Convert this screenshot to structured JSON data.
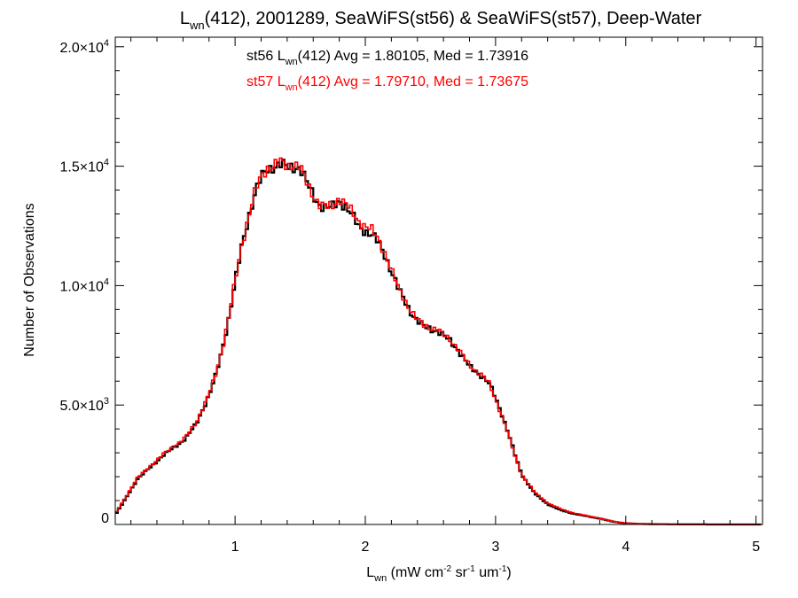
{
  "chart_data": {
    "type": "line",
    "title": {
      "main": "L",
      "sub": "wn",
      "rest": "(412), 2001289, SeaWiFS(st56) & SeaWiFS(st57), Deep-Water"
    },
    "xlabel": {
      "main": "L",
      "sub": "wn",
      "unit_pre": " (mW cm",
      "sup1": "-2",
      "unit_mid1": " sr",
      "sup2": "-1",
      "unit_mid2": " um",
      "sup3": "-1",
      "unit_post": ")"
    },
    "ylabel": "Number of Observations",
    "xlim": [
      0.08,
      5.05
    ],
    "ylim": [
      0,
      20400
    ],
    "grid": false,
    "x_ticks": [
      {
        "value": 1,
        "label": "1"
      },
      {
        "value": 2,
        "label": "2"
      },
      {
        "value": 3,
        "label": "3"
      },
      {
        "value": 4,
        "label": "4"
      },
      {
        "value": 5,
        "label": "5"
      }
    ],
    "y_ticks": [
      {
        "value": 0,
        "mant": "0",
        "exp": ""
      },
      {
        "value": 5000,
        "mant": "5.0×10",
        "exp": "3"
      },
      {
        "value": 10000,
        "mant": "1.0×10",
        "exp": "4"
      },
      {
        "value": 15000,
        "mant": "1.5×10",
        "exp": "4"
      },
      {
        "value": 20000,
        "mant": "2.0×10",
        "exp": "4"
      }
    ],
    "annotations": [
      {
        "pre": "st56 L",
        "sub": "wn",
        "post": "(412) Avg = 1.80105, Med = 1.73916",
        "color": "#000000"
      },
      {
        "pre": "st57 L",
        "sub": "wn",
        "post": "(412) Avg = 1.79710, Med = 1.73675",
        "color": "#ff0000"
      }
    ],
    "series": [
      {
        "color": "#000000",
        "x": [
          0.08,
          0.15,
          0.25,
          0.35,
          0.45,
          0.55,
          0.62,
          0.7,
          0.75,
          0.8,
          0.85,
          0.9,
          0.95,
          1.0,
          1.05,
          1.1,
          1.15,
          1.2,
          1.25,
          1.3,
          1.35,
          1.4,
          1.45,
          1.5,
          1.55,
          1.6,
          1.65,
          1.7,
          1.75,
          1.8,
          1.85,
          1.9,
          1.95,
          2.0,
          2.05,
          2.1,
          2.15,
          2.2,
          2.25,
          2.3,
          2.35,
          2.4,
          2.45,
          2.5,
          2.55,
          2.6,
          2.65,
          2.7,
          2.75,
          2.8,
          2.85,
          2.9,
          2.95,
          3.0,
          3.05,
          3.1,
          3.15,
          3.2,
          3.3,
          3.4,
          3.5,
          3.6,
          3.7,
          3.8,
          3.9,
          4.0,
          4.1,
          4.2,
          4.3,
          4.4,
          4.6,
          4.8,
          5.05
        ],
        "values": [
          400,
          1000,
          1900,
          2400,
          2900,
          3300,
          3600,
          4200,
          4800,
          5400,
          6200,
          7300,
          8600,
          10100,
          11600,
          12800,
          13800,
          14500,
          14900,
          15000,
          15050,
          14950,
          15000,
          14900,
          14300,
          13800,
          13400,
          13200,
          13300,
          13600,
          13300,
          12900,
          12500,
          12300,
          12100,
          11800,
          11300,
          10600,
          9900,
          9400,
          8900,
          8500,
          8300,
          8200,
          8100,
          7900,
          7700,
          7400,
          7000,
          6600,
          6400,
          6200,
          5900,
          5300,
          4600,
          3800,
          2900,
          2100,
          1300,
          850,
          600,
          450,
          350,
          250,
          120,
          50,
          25,
          15,
          10,
          5,
          2,
          1,
          0
        ]
      },
      {
        "color": "#ff0000",
        "x": [
          0.08,
          0.15,
          0.25,
          0.35,
          0.45,
          0.55,
          0.62,
          0.7,
          0.75,
          0.8,
          0.85,
          0.9,
          0.95,
          1.0,
          1.05,
          1.1,
          1.15,
          1.2,
          1.25,
          1.3,
          1.35,
          1.4,
          1.45,
          1.5,
          1.55,
          1.6,
          1.65,
          1.7,
          1.75,
          1.8,
          1.85,
          1.9,
          1.95,
          2.0,
          2.05,
          2.1,
          2.15,
          2.2,
          2.25,
          2.3,
          2.35,
          2.4,
          2.45,
          2.5,
          2.55,
          2.6,
          2.65,
          2.7,
          2.75,
          2.8,
          2.85,
          2.9,
          2.95,
          3.0,
          3.05,
          3.1,
          3.15,
          3.2,
          3.3,
          3.4,
          3.5,
          3.6,
          3.7,
          3.8,
          3.9,
          4.0,
          4.1,
          4.2,
          4.3,
          4.4,
          4.6,
          4.8,
          5.05
        ],
        "values": [
          450,
          1050,
          1950,
          2450,
          2950,
          3350,
          3650,
          4250,
          4850,
          5450,
          6250,
          7350,
          8650,
          10150,
          11650,
          12850,
          13850,
          14550,
          14950,
          15050,
          15150,
          15000,
          15100,
          14950,
          14300,
          13800,
          13400,
          13250,
          13350,
          13700,
          13400,
          13050,
          12700,
          12500,
          12300,
          11950,
          11400,
          10650,
          9950,
          9450,
          8950,
          8550,
          8350,
          8250,
          8150,
          7950,
          7750,
          7450,
          7050,
          6650,
          6450,
          6250,
          5900,
          5250,
          4550,
          3750,
          2850,
          2100,
          1350,
          900,
          650,
          480,
          370,
          260,
          130,
          55,
          28,
          16,
          10,
          5,
          2,
          1,
          0
        ]
      }
    ]
  }
}
